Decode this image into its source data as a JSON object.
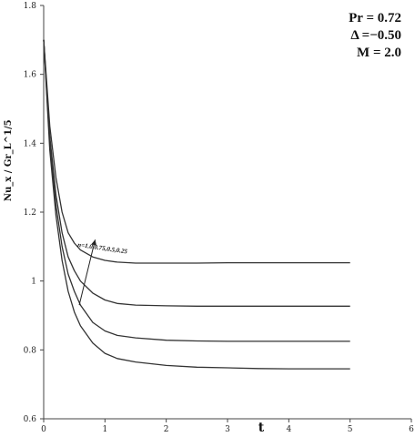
{
  "chart_data": {
    "type": "line",
    "title": "",
    "xlabel": "t",
    "ylabel": "Nu_x / Gr_L^1/5",
    "xlim": [
      0,
      6
    ],
    "ylim": [
      0.6,
      1.8
    ],
    "x_ticks": [
      "0",
      "1",
      "2",
      "3",
      "4",
      "5",
      "6"
    ],
    "y_ticks": [
      "0.6",
      "0.8",
      "1",
      "1.2",
      "1.4",
      "1.6",
      "1.8"
    ],
    "grid": false,
    "legend": "none",
    "parameters": [
      "Pr = 0.72",
      "Δ =−0.50",
      "M = 2.0"
    ],
    "annotation": "n=1.0,0.75,0.5,0.25",
    "x": [
      0,
      0.1,
      0.2,
      0.3,
      0.4,
      0.5,
      0.6,
      0.8,
      1.0,
      1.2,
      1.5,
      2.0,
      2.5,
      3.0,
      3.5,
      4.0,
      4.5,
      5.0
    ],
    "series": [
      {
        "values": [
          1.7,
          1.45,
          1.3,
          1.2,
          1.14,
          1.11,
          1.09,
          1.07,
          1.06,
          1.055,
          1.052,
          1.052,
          1.052,
          1.053,
          1.053,
          1.053,
          1.053,
          1.053
        ]
      },
      {
        "values": [
          1.7,
          1.42,
          1.25,
          1.14,
          1.07,
          1.03,
          1.0,
          0.965,
          0.945,
          0.935,
          0.93,
          0.928,
          0.927,
          0.927,
          0.927,
          0.927,
          0.927,
          0.927
        ]
      },
      {
        "values": [
          1.7,
          1.4,
          1.22,
          1.1,
          1.02,
          0.97,
          0.93,
          0.88,
          0.855,
          0.842,
          0.835,
          0.828,
          0.826,
          0.825,
          0.825,
          0.825,
          0.825,
          0.825
        ]
      },
      {
        "values": [
          1.7,
          1.38,
          1.19,
          1.06,
          0.97,
          0.91,
          0.87,
          0.82,
          0.79,
          0.775,
          0.765,
          0.755,
          0.75,
          0.748,
          0.746,
          0.745,
          0.745,
          0.745
        ]
      }
    ],
    "line_color": "#333333"
  }
}
